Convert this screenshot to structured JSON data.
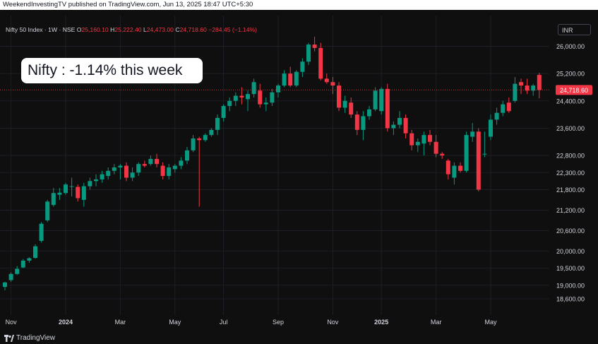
{
  "header": {
    "publisher_line": "WeekendInvestingTV published on TradingView.com, Jun 13, 2025 18:47 UTC+5:30"
  },
  "legend": {
    "symbol": "Nifty 50 Index · 1W · NSE",
    "o_label": "O",
    "o_value": "25,160.10",
    "h_label": "H",
    "h_value": "25,222.40",
    "l_label": "L",
    "l_value": "24,473.00",
    "c_label": "C",
    "c_value": "24,718.60",
    "change": "−284.45 (−1.14%)"
  },
  "currency_button": "INR",
  "callout": "Nifty : -1.14% this week",
  "footer": {
    "brand": "TradingView"
  },
  "colors": {
    "up": "#089981",
    "down": "#f23645",
    "grid": "#1c1f26",
    "axis_text": "#d1d4dc",
    "last_price_bg": "#f23645"
  },
  "chart_data": {
    "type": "candlestick",
    "interval": "1W",
    "ylim": [
      18250,
      26900
    ],
    "y_ticks": [
      {
        "value": 26000,
        "label": "26,000.00"
      },
      {
        "value": 25200,
        "label": "25,200.00"
      },
      {
        "value": 24400,
        "label": "24,400.00"
      },
      {
        "value": 23600,
        "label": "23,600.00"
      },
      {
        "value": 22800,
        "label": "22,800.00"
      },
      {
        "value": 22300,
        "label": "22,300.00"
      },
      {
        "value": 21800,
        "label": "21,800.00"
      },
      {
        "value": 21200,
        "label": "21,200.00"
      },
      {
        "value": 20600,
        "label": "20,600.00"
      },
      {
        "value": 20000,
        "label": "20,000.00"
      },
      {
        "value": 19500,
        "label": "19,500.00"
      },
      {
        "value": 19000,
        "label": "19,000.00"
      },
      {
        "value": 18600,
        "label": "18,600.00"
      }
    ],
    "x_ticks": [
      {
        "index": 1,
        "label": "Nov"
      },
      {
        "index": 10,
        "label": "2024",
        "bold": true
      },
      {
        "index": 19,
        "label": "Mar"
      },
      {
        "index": 28,
        "label": "May"
      },
      {
        "index": 36,
        "label": "Jul"
      },
      {
        "index": 45,
        "label": "Sep"
      },
      {
        "index": 54,
        "label": "Nov"
      },
      {
        "index": 62,
        "label": "2025",
        "bold": true
      },
      {
        "index": 71,
        "label": "Mar"
      },
      {
        "index": 80,
        "label": "May"
      }
    ],
    "last_price": {
      "value": 24718.6,
      "label": "24,718.60"
    },
    "candles": [
      {
        "o": 18950,
        "h": 19100,
        "l": 18850,
        "c": 19080
      },
      {
        "o": 19150,
        "h": 19380,
        "l": 19100,
        "c": 19330
      },
      {
        "o": 19330,
        "h": 19560,
        "l": 19300,
        "c": 19480
      },
      {
        "o": 19520,
        "h": 19770,
        "l": 19500,
        "c": 19720
      },
      {
        "o": 19720,
        "h": 19820,
        "l": 19660,
        "c": 19790
      },
      {
        "o": 19800,
        "h": 20200,
        "l": 19780,
        "c": 20140
      },
      {
        "o": 20300,
        "h": 20850,
        "l": 20250,
        "c": 20800
      },
      {
        "o": 20900,
        "h": 21500,
        "l": 20850,
        "c": 21450
      },
      {
        "o": 21350,
        "h": 21850,
        "l": 21300,
        "c": 21700
      },
      {
        "o": 21650,
        "h": 21850,
        "l": 21500,
        "c": 21710
      },
      {
        "o": 21700,
        "h": 22000,
        "l": 21650,
        "c": 21950
      },
      {
        "o": 21900,
        "h": 22150,
        "l": 21600,
        "c": 21900
      },
      {
        "o": 21880,
        "h": 21950,
        "l": 21450,
        "c": 21550
      },
      {
        "o": 21500,
        "h": 22000,
        "l": 21300,
        "c": 21900
      },
      {
        "o": 21900,
        "h": 22150,
        "l": 21800,
        "c": 22050
      },
      {
        "o": 22050,
        "h": 22250,
        "l": 21900,
        "c": 22100
      },
      {
        "o": 22100,
        "h": 22350,
        "l": 22000,
        "c": 22250
      },
      {
        "o": 22200,
        "h": 22450,
        "l": 22100,
        "c": 22350
      },
      {
        "o": 22350,
        "h": 22550,
        "l": 22250,
        "c": 22450
      },
      {
        "o": 22450,
        "h": 22550,
        "l": 22100,
        "c": 22500
      },
      {
        "o": 22500,
        "h": 22600,
        "l": 22050,
        "c": 22150
      },
      {
        "o": 22150,
        "h": 22450,
        "l": 22050,
        "c": 22300
      },
      {
        "o": 22300,
        "h": 22600,
        "l": 22200,
        "c": 22550
      },
      {
        "o": 22550,
        "h": 22650,
        "l": 22450,
        "c": 22500
      },
      {
        "o": 22550,
        "h": 22800,
        "l": 22500,
        "c": 22700
      },
      {
        "o": 22700,
        "h": 22850,
        "l": 22450,
        "c": 22550
      },
      {
        "o": 22500,
        "h": 22600,
        "l": 22100,
        "c": 22200
      },
      {
        "o": 22200,
        "h": 22550,
        "l": 22100,
        "c": 22450
      },
      {
        "o": 22400,
        "h": 22550,
        "l": 22300,
        "c": 22500
      },
      {
        "o": 22500,
        "h": 22750,
        "l": 22400,
        "c": 22650
      },
      {
        "o": 22650,
        "h": 23050,
        "l": 22550,
        "c": 22950
      },
      {
        "o": 22950,
        "h": 23400,
        "l": 22900,
        "c": 23300
      },
      {
        "o": 23300,
        "h": 23350,
        "l": 21300,
        "c": 23250
      },
      {
        "o": 23250,
        "h": 23450,
        "l": 23200,
        "c": 23400
      },
      {
        "o": 23400,
        "h": 23600,
        "l": 23350,
        "c": 23550
      },
      {
        "o": 23550,
        "h": 24000,
        "l": 23400,
        "c": 23900
      },
      {
        "o": 23900,
        "h": 24300,
        "l": 23800,
        "c": 24250
      },
      {
        "o": 24250,
        "h": 24500,
        "l": 24100,
        "c": 24400
      },
      {
        "o": 24400,
        "h": 24650,
        "l": 24250,
        "c": 24550
      },
      {
        "o": 24550,
        "h": 24800,
        "l": 24300,
        "c": 24500
      },
      {
        "o": 24450,
        "h": 24700,
        "l": 24100,
        "c": 24600
      },
      {
        "o": 24600,
        "h": 25050,
        "l": 24500,
        "c": 24950
      },
      {
        "o": 24700,
        "h": 24900,
        "l": 24200,
        "c": 24300
      },
      {
        "o": 24300,
        "h": 24500,
        "l": 24100,
        "c": 24350
      },
      {
        "o": 24350,
        "h": 24750,
        "l": 24250,
        "c": 24650
      },
      {
        "o": 24650,
        "h": 24900,
        "l": 24500,
        "c": 24850
      },
      {
        "o": 24850,
        "h": 25300,
        "l": 24800,
        "c": 25200
      },
      {
        "o": 25200,
        "h": 25400,
        "l": 24800,
        "c": 24850
      },
      {
        "o": 24850,
        "h": 25300,
        "l": 24800,
        "c": 25250
      },
      {
        "o": 25250,
        "h": 25650,
        "l": 25100,
        "c": 25550
      },
      {
        "o": 25550,
        "h": 26100,
        "l": 25450,
        "c": 26050
      },
      {
        "o": 26050,
        "h": 26277,
        "l": 25850,
        "c": 25950
      },
      {
        "o": 25950,
        "h": 26100,
        "l": 25000,
        "c": 25050
      },
      {
        "o": 25050,
        "h": 25200,
        "l": 24900,
        "c": 24950
      },
      {
        "o": 24950,
        "h": 25100,
        "l": 24600,
        "c": 24850
      },
      {
        "o": 24850,
        "h": 24950,
        "l": 24100,
        "c": 24200
      },
      {
        "o": 24200,
        "h": 24550,
        "l": 24050,
        "c": 24400
      },
      {
        "o": 24350,
        "h": 24500,
        "l": 23900,
        "c": 24000
      },
      {
        "o": 24000,
        "h": 24100,
        "l": 23400,
        "c": 23550
      },
      {
        "o": 23550,
        "h": 24100,
        "l": 23250,
        "c": 23950
      },
      {
        "o": 23950,
        "h": 24250,
        "l": 23850,
        "c": 24150
      },
      {
        "o": 24150,
        "h": 24800,
        "l": 24100,
        "c": 24700
      },
      {
        "o": 24100,
        "h": 24800,
        "l": 24000,
        "c": 24750
      },
      {
        "o": 24750,
        "h": 24900,
        "l": 23500,
        "c": 23600
      },
      {
        "o": 23600,
        "h": 23800,
        "l": 23400,
        "c": 23700
      },
      {
        "o": 23700,
        "h": 24100,
        "l": 23600,
        "c": 23900
      },
      {
        "o": 23900,
        "h": 24000,
        "l": 23300,
        "c": 23450
      },
      {
        "o": 23450,
        "h": 23550,
        "l": 22950,
        "c": 23100
      },
      {
        "o": 23100,
        "h": 23300,
        "l": 22900,
        "c": 23200
      },
      {
        "o": 23150,
        "h": 23500,
        "l": 22800,
        "c": 23400
      },
      {
        "o": 23400,
        "h": 23550,
        "l": 23100,
        "c": 23200
      },
      {
        "o": 23200,
        "h": 23400,
        "l": 22750,
        "c": 22850
      },
      {
        "o": 22850,
        "h": 22900,
        "l": 22700,
        "c": 22800
      },
      {
        "o": 22650,
        "h": 22700,
        "l": 22100,
        "c": 22250
      },
      {
        "o": 22150,
        "h": 22600,
        "l": 21950,
        "c": 22500
      },
      {
        "o": 22500,
        "h": 22600,
        "l": 22300,
        "c": 22350
      },
      {
        "o": 22350,
        "h": 23500,
        "l": 22300,
        "c": 23400
      },
      {
        "o": 23350,
        "h": 23750,
        "l": 23200,
        "c": 23500
      },
      {
        "o": 23500,
        "h": 23600,
        "l": 21750,
        "c": 21800
      },
      {
        "o": 22850,
        "h": 23500,
        "l": 22750,
        "c": 22850
      },
      {
        "o": 23350,
        "h": 24000,
        "l": 23250,
        "c": 23850
      },
      {
        "o": 23850,
        "h": 24200,
        "l": 23700,
        "c": 24050
      },
      {
        "o": 24050,
        "h": 24400,
        "l": 23950,
        "c": 24300
      },
      {
        "o": 24350,
        "h": 24500,
        "l": 24050,
        "c": 24100
      },
      {
        "o": 24400,
        "h": 25100,
        "l": 24350,
        "c": 24900
      },
      {
        "o": 24950,
        "h": 25050,
        "l": 24600,
        "c": 24850
      },
      {
        "o": 24850,
        "h": 25050,
        "l": 24600,
        "c": 24700
      },
      {
        "o": 24700,
        "h": 24900,
        "l": 24550,
        "c": 24850
      },
      {
        "o": 25160.1,
        "h": 25222.4,
        "l": 24473,
        "c": 24718.6
      }
    ]
  }
}
